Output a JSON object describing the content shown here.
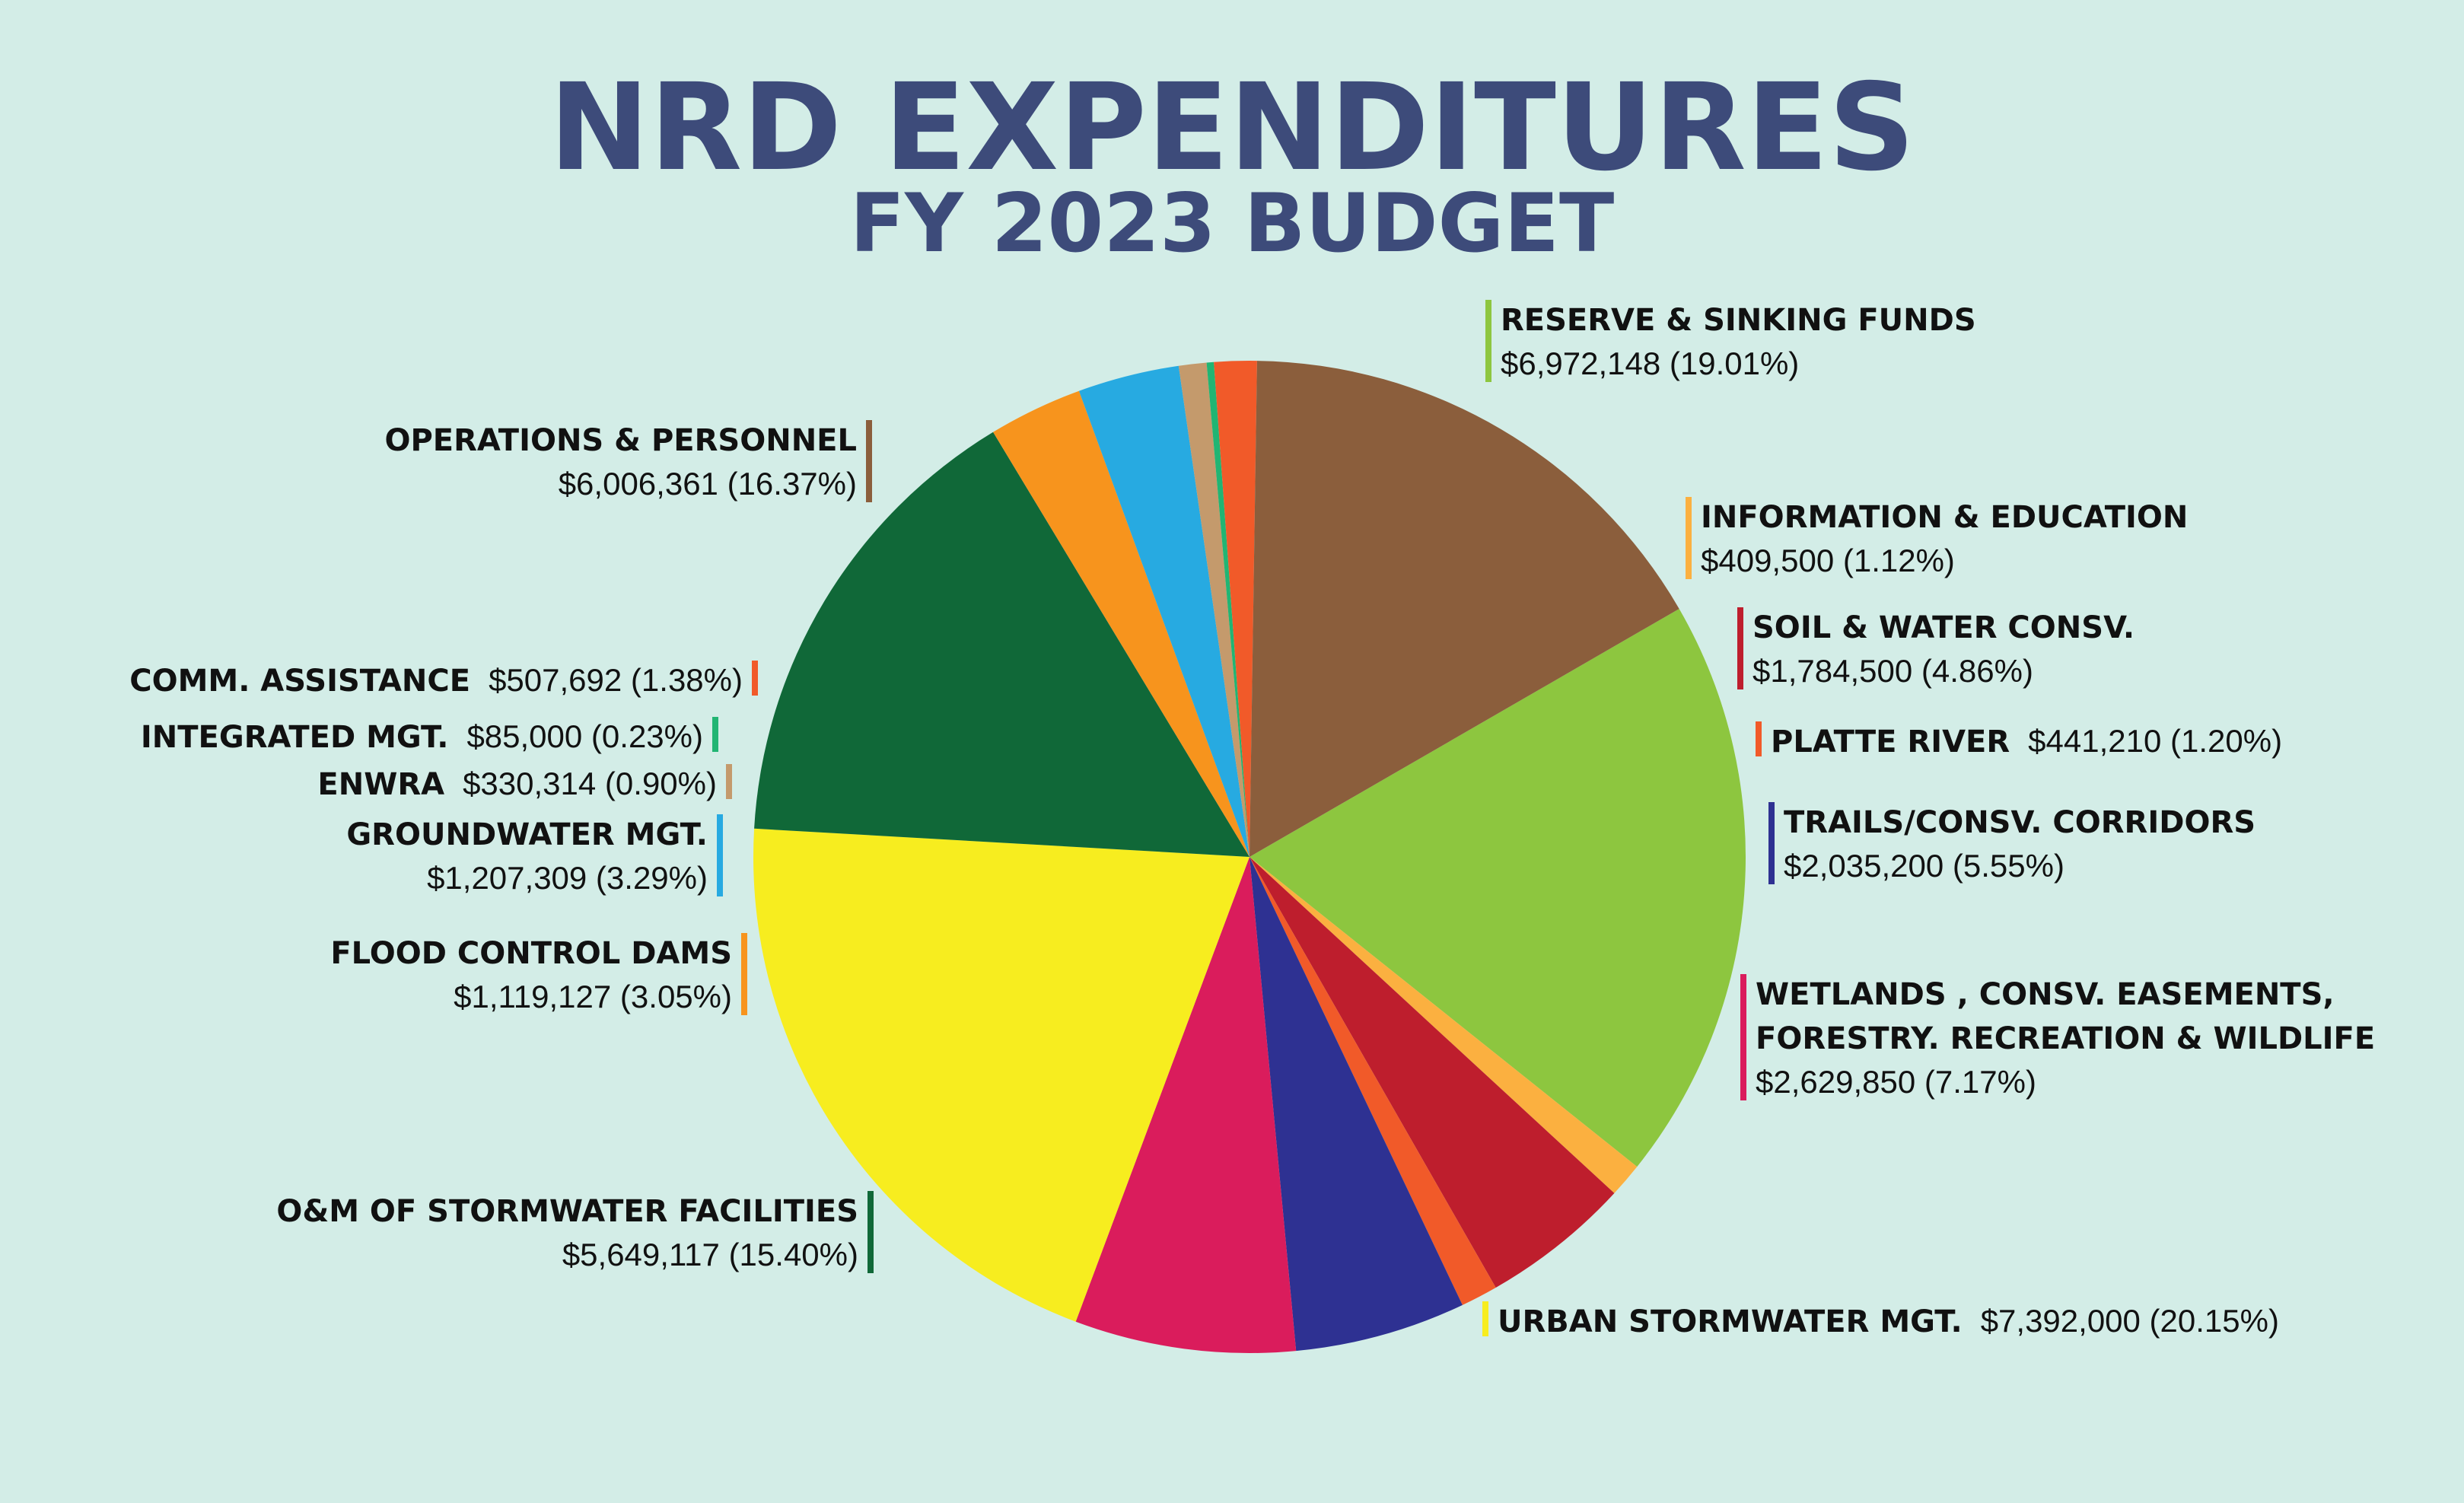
{
  "title": "NRD EXPENDITURES",
  "subtitle": "FY 2023 BUDGET",
  "chart_data": {
    "type": "pie",
    "title": "NRD EXPENDITURES",
    "subtitle": "FY 2023 BUDGET",
    "start_angle_deg": -30,
    "direction": "clockwise",
    "slices": [
      {
        "label": "RESERVE & SINKING FUNDS",
        "value": 6972148,
        "value_label": "$6,972,148",
        "percent_label": "(19.01%)",
        "percent": 19.01,
        "color": "#8dc63f"
      },
      {
        "label": "INFORMATION & EDUCATION",
        "value": 409500,
        "value_label": "$409,500",
        "percent_label": "(1.12%)",
        "percent": 1.12,
        "color": "#fbb040"
      },
      {
        "label": "SOIL & WATER  CONSV.",
        "value": 1784500,
        "value_label": "$1,784,500",
        "percent_label": "(4.86%)",
        "percent": 4.86,
        "color": "#be1e2d"
      },
      {
        "label": "PLATTE RIVER",
        "value": 441210,
        "value_label": "$441,210",
        "percent_label": "(1.20%)",
        "percent": 1.2,
        "color": "#f15a29"
      },
      {
        "label": "TRAILS/CONSV. CORRIDORS",
        "value": 2035200,
        "value_label": "$2,035,200",
        "percent_label": " (5.55%)",
        "percent": 5.55,
        "color": "#2e3192"
      },
      {
        "label": "WETLANDS , CONSV. EASEMENTS,",
        "label2": "FORESTRY. RECREATION & WILDLIFE",
        "value": 2629850,
        "value_label": "$2,629,850",
        "percent_label": "(7.17%)",
        "percent": 7.17,
        "color": "#da1c5c"
      },
      {
        "label": "URBAN STORMWATER MGT.",
        "value": 7392000,
        "value_label": "$7,392,000",
        "percent_label": "(20.15%)",
        "percent": 20.15,
        "color": "#f7ed1f"
      },
      {
        "label": "O&M OF STORMWATER FACILITIES",
        "value": 5649117,
        "value_label": "$5,649,117",
        "percent_label": "(15.40%)",
        "percent": 15.4,
        "color": "#106838"
      },
      {
        "label": "FLOOD CONTROL DAMS",
        "value": 1119127,
        "value_label": "$1,119,127",
        "percent_label": "(3.05%)",
        "percent": 3.05,
        "color": "#f7941d"
      },
      {
        "label": "GROUNDWATER MGT.",
        "value": 1207309,
        "value_label": "$1,207,309",
        "percent_label": "(3.29%)",
        "percent": 3.29,
        "color": "#27aae1"
      },
      {
        "label": "ENWRA",
        "value": 330314,
        "value_label": "$330,314",
        "percent_label": "(0.90%)",
        "percent": 0.9,
        "color": "#c49a6c"
      },
      {
        "label": "INTEGRATED MGT.",
        "value": 85000,
        "value_label": "$85,000",
        "percent_label": "(0.23%)",
        "percent": 0.23,
        "color": "#21b573"
      },
      {
        "label": "COMM. ASSISTANCE",
        "value": 507692,
        "value_label": "$507,692",
        "percent_label": "(1.38%)",
        "percent": 1.38,
        "color": "#f15a29"
      },
      {
        "label": "OPERATIONS & PERSONNEL",
        "value": 6006361,
        "value_label": "$6,006,361",
        "percent_label": "(16.37%)",
        "percent": 16.37,
        "color": "#8b5e3c"
      }
    ]
  }
}
